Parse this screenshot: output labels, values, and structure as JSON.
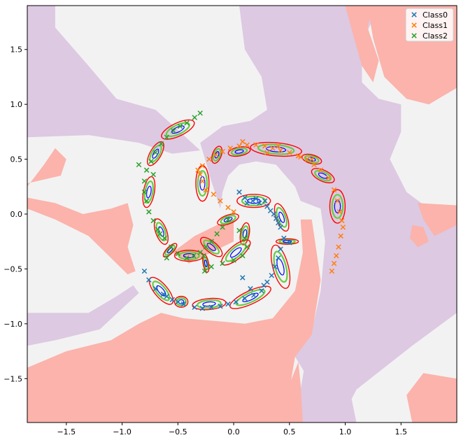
{
  "chart_data": {
    "type": "scatter",
    "title": "",
    "xlabel": "",
    "ylabel": "",
    "xlim": [
      -1.85,
      2.0
    ],
    "ylim": [
      -1.9,
      1.9
    ],
    "xticks": [
      "−1.5",
      "−1.0",
      "−0.5",
      "0.0",
      "0.5",
      "1.0",
      "1.5"
    ],
    "xtick_values": [
      -1.5,
      -1.0,
      -0.5,
      0.0,
      0.5,
      1.0,
      1.5
    ],
    "yticks": [
      "−1.5",
      "−1.0",
      "−0.5",
      "0.0",
      "0.5",
      "1.0",
      "1.5"
    ],
    "ytick_values": [
      -1.5,
      -1.0,
      -0.5,
      0.0,
      0.5,
      1.0,
      1.5
    ],
    "grid": false,
    "legend_position": "top-right",
    "colors": {
      "class0": "#1f77b4",
      "class1": "#ff7f0e",
      "class2": "#2ca02c",
      "region_class0": "#f2f2f2",
      "region_class1": "#ddc9e2",
      "region_class2": "#fbb3ab",
      "ellipse_outer": "#ff0000",
      "ellipse_inner": "#0000ff",
      "ellipse_mid": "#66cc44"
    },
    "series": [
      {
        "name": "Class0",
        "points": [
          [
            0.05,
            0.2
          ],
          [
            0.1,
            0.15
          ],
          [
            0.12,
            0.1
          ],
          [
            0.17,
            0.12
          ],
          [
            0.2,
            0.14
          ],
          [
            0.23,
            0.1
          ],
          [
            0.28,
            0.12
          ],
          [
            0.3,
            0.07
          ],
          [
            0.33,
            0.03
          ],
          [
            0.36,
            0.0
          ],
          [
            0.38,
            -0.04
          ],
          [
            0.4,
            -0.08
          ],
          [
            0.42,
            -0.12
          ],
          [
            0.45,
            -0.22
          ],
          [
            0.5,
            -0.26
          ],
          [
            0.42,
            -0.32
          ],
          [
            0.4,
            -0.4
          ],
          [
            0.37,
            -0.48
          ],
          [
            0.34,
            -0.56
          ],
          [
            0.3,
            -0.62
          ],
          [
            0.25,
            -0.7
          ],
          [
            0.18,
            -0.74
          ],
          [
            0.1,
            -0.77
          ],
          [
            0.02,
            -0.8
          ],
          [
            -0.05,
            -0.82
          ],
          [
            -0.12,
            -0.84
          ],
          [
            -0.2,
            -0.85
          ],
          [
            -0.28,
            -0.86
          ],
          [
            -0.35,
            -0.85
          ],
          [
            -0.45,
            -0.82
          ],
          [
            -0.55,
            -0.78
          ],
          [
            -0.63,
            -0.73
          ],
          [
            -0.7,
            -0.68
          ],
          [
            -0.76,
            -0.6
          ],
          [
            -0.8,
            -0.52
          ],
          [
            0.08,
            -0.58
          ],
          [
            0.15,
            -0.68
          ],
          [
            -0.6,
            -0.75
          ],
          [
            -0.5,
            -0.8
          ],
          [
            0.27,
            -0.65
          ]
        ]
      },
      {
        "name": "Class1",
        "points": [
          [
            0.0,
            0.02
          ],
          [
            -0.05,
            0.06
          ],
          [
            -0.12,
            0.12
          ],
          [
            -0.18,
            0.18
          ],
          [
            -0.25,
            0.22
          ],
          [
            -0.28,
            0.3
          ],
          [
            -0.3,
            0.36
          ],
          [
            -0.28,
            0.44
          ],
          [
            -0.22,
            0.5
          ],
          [
            -0.16,
            0.54
          ],
          [
            -0.1,
            0.57
          ],
          [
            -0.03,
            0.6
          ],
          [
            0.05,
            0.62
          ],
          [
            0.12,
            0.63
          ],
          [
            0.2,
            0.63
          ],
          [
            0.28,
            0.62
          ],
          [
            0.35,
            0.6
          ],
          [
            0.42,
            0.58
          ],
          [
            0.5,
            0.56
          ],
          [
            0.58,
            0.53
          ],
          [
            0.66,
            0.5
          ],
          [
            0.72,
            0.45
          ],
          [
            0.78,
            0.4
          ],
          [
            0.85,
            0.33
          ],
          [
            0.9,
            0.22
          ],
          [
            0.93,
            0.12
          ],
          [
            0.95,
            0.02
          ],
          [
            0.97,
            -0.06
          ],
          [
            0.98,
            -0.12
          ],
          [
            0.96,
            -0.2
          ],
          [
            0.94,
            -0.3
          ],
          [
            0.92,
            -0.38
          ],
          [
            0.9,
            -0.45
          ],
          [
            0.88,
            -0.52
          ],
          [
            0.7,
            0.5
          ],
          [
            0.6,
            0.52
          ],
          [
            0.08,
            0.66
          ],
          [
            -0.32,
            0.4
          ],
          [
            0.4,
            0.62
          ],
          [
            0.3,
            0.56
          ]
        ]
      },
      {
        "name": "Class2",
        "points": [
          [
            -0.05,
            -0.05
          ],
          [
            -0.1,
            -0.12
          ],
          [
            -0.15,
            -0.18
          ],
          [
            -0.2,
            -0.25
          ],
          [
            -0.25,
            -0.3
          ],
          [
            -0.3,
            -0.35
          ],
          [
            -0.36,
            -0.38
          ],
          [
            -0.42,
            -0.4
          ],
          [
            -0.5,
            -0.36
          ],
          [
            -0.56,
            -0.3
          ],
          [
            -0.62,
            -0.22
          ],
          [
            -0.68,
            -0.14
          ],
          [
            -0.72,
            -0.06
          ],
          [
            -0.76,
            0.02
          ],
          [
            -0.78,
            0.12
          ],
          [
            -0.8,
            0.2
          ],
          [
            -0.8,
            0.3
          ],
          [
            -0.78,
            0.4
          ],
          [
            -0.74,
            0.48
          ],
          [
            -0.7,
            0.56
          ],
          [
            -0.65,
            0.64
          ],
          [
            -0.6,
            0.7
          ],
          [
            -0.54,
            0.76
          ],
          [
            -0.48,
            0.8
          ],
          [
            -0.42,
            0.83
          ],
          [
            -0.35,
            0.88
          ],
          [
            -0.3,
            0.92
          ],
          [
            0.05,
            -0.15
          ],
          [
            0.1,
            -0.22
          ],
          [
            0.12,
            -0.3
          ],
          [
            0.08,
            -0.38
          ],
          [
            0.0,
            -0.42
          ],
          [
            -0.1,
            -0.45
          ],
          [
            -0.2,
            -0.48
          ],
          [
            -0.26,
            -0.52
          ],
          [
            -0.85,
            0.45
          ],
          [
            -0.72,
            0.36
          ],
          [
            -0.66,
            -0.18
          ],
          [
            -0.6,
            -0.4
          ],
          [
            -0.27,
            -0.38
          ]
        ]
      }
    ],
    "ellipses": [
      {
        "cx": -0.5,
        "cy": 0.77,
        "rx": 0.16,
        "ry": 0.06,
        "angle": 25
      },
      {
        "cx": -0.7,
        "cy": 0.55,
        "rx": 0.12,
        "ry": 0.05,
        "angle": 60
      },
      {
        "cx": -0.76,
        "cy": 0.2,
        "rx": 0.14,
        "ry": 0.05,
        "angle": 80
      },
      {
        "cx": -0.65,
        "cy": -0.16,
        "rx": 0.12,
        "ry": 0.05,
        "angle": -70
      },
      {
        "cx": -0.57,
        "cy": -0.33,
        "rx": 0.08,
        "ry": 0.03,
        "angle": 45
      },
      {
        "cx": -0.4,
        "cy": -0.38,
        "rx": 0.13,
        "ry": 0.05,
        "angle": 0
      },
      {
        "cx": -0.25,
        "cy": -0.45,
        "rx": 0.08,
        "ry": 0.025,
        "angle": -80
      },
      {
        "cx": -0.2,
        "cy": -0.3,
        "rx": 0.12,
        "ry": 0.05,
        "angle": -40
      },
      {
        "cx": -0.05,
        "cy": -0.05,
        "rx": 0.1,
        "ry": 0.04,
        "angle": 20
      },
      {
        "cx": 0.1,
        "cy": -0.18,
        "rx": 0.1,
        "ry": 0.04,
        "angle": 80
      },
      {
        "cx": 0.02,
        "cy": -0.35,
        "rx": 0.16,
        "ry": 0.06,
        "angle": 40
      },
      {
        "cx": -0.28,
        "cy": 0.28,
        "rx": 0.16,
        "ry": 0.06,
        "angle": 90
      },
      {
        "cx": -0.15,
        "cy": 0.54,
        "rx": 0.08,
        "ry": 0.04,
        "angle": 70
      },
      {
        "cx": 0.05,
        "cy": 0.57,
        "rx": 0.1,
        "ry": 0.04,
        "angle": 10
      },
      {
        "cx": 0.38,
        "cy": 0.59,
        "rx": 0.23,
        "ry": 0.06,
        "angle": -5
      },
      {
        "cx": 0.7,
        "cy": 0.5,
        "rx": 0.09,
        "ry": 0.04,
        "angle": -15
      },
      {
        "cx": 0.8,
        "cy": 0.35,
        "rx": 0.11,
        "ry": 0.05,
        "angle": -25
      },
      {
        "cx": 0.93,
        "cy": 0.07,
        "rx": 0.15,
        "ry": 0.07,
        "angle": 90
      },
      {
        "cx": 0.18,
        "cy": 0.12,
        "rx": 0.15,
        "ry": 0.06,
        "angle": 0
      },
      {
        "cx": 0.43,
        "cy": -0.03,
        "rx": 0.13,
        "ry": 0.05,
        "angle": -70
      },
      {
        "cx": 0.42,
        "cy": -0.48,
        "rx": 0.2,
        "ry": 0.07,
        "angle": -75
      },
      {
        "cx": 0.15,
        "cy": -0.76,
        "rx": 0.2,
        "ry": 0.06,
        "angle": 25
      },
      {
        "cx": -0.22,
        "cy": -0.82,
        "rx": 0.15,
        "ry": 0.05,
        "angle": 5
      },
      {
        "cx": -0.47,
        "cy": -0.8,
        "rx": 0.06,
        "ry": 0.05,
        "angle": 0
      },
      {
        "cx": -0.65,
        "cy": -0.7,
        "rx": 0.15,
        "ry": 0.06,
        "angle": -50
      },
      {
        "cx": 0.48,
        "cy": -0.25,
        "rx": 0.1,
        "ry": 0.025,
        "angle": 0
      }
    ],
    "region_class2_polygons": [
      [
        [
          -1.85,
          1.9
        ],
        [
          -1.0,
          1.9
        ],
        [
          -0.8,
          1.55
        ],
        [
          -0.55,
          1.35
        ],
        [
          -0.3,
          1.2
        ],
        [
          0.0,
          1.15
        ],
        [
          0.2,
          1.25
        ],
        [
          0.35,
          1.45
        ],
        [
          0.45,
          1.7
        ],
        [
          0.55,
          1.9
        ],
        [
          -1.85,
          1.9
        ]
      ]
    ],
    "region_class1_polygons": [
      [
        [
          -1.85,
          1.9
        ],
        [
          -1.6,
          1.9
        ],
        [
          -1.6,
          1.7
        ],
        [
          -1.3,
          1.35
        ],
        [
          -1.05,
          1.05
        ],
        [
          -0.7,
          0.95
        ],
        [
          -0.45,
          0.72
        ],
        [
          -0.3,
          0.58
        ],
        [
          -0.55,
          0.55
        ],
        [
          -0.85,
          0.65
        ],
        [
          -1.3,
          0.72
        ],
        [
          -1.85,
          0.7
        ]
      ],
      [
        [
          0.05,
          1.9
        ],
        [
          1.3,
          1.9
        ],
        [
          1.15,
          1.55
        ],
        [
          1.15,
          1.2
        ],
        [
          1.3,
          1.05
        ],
        [
          1.5,
          1.0
        ],
        [
          1.5,
          0.75
        ],
        [
          1.4,
          0.5
        ],
        [
          1.55,
          0.2
        ],
        [
          1.75,
          0.05
        ],
        [
          2.0,
          0.05
        ],
        [
          2.0,
          -0.9
        ],
        [
          1.6,
          -1.2
        ],
        [
          1.1,
          -1.6
        ],
        [
          0.95,
          -1.9
        ],
        [
          0.55,
          -1.9
        ],
        [
          0.65,
          -1.3
        ],
        [
          0.78,
          -0.7
        ],
        [
          0.82,
          -0.25
        ],
        [
          0.78,
          0.05
        ],
        [
          0.6,
          0.12
        ],
        [
          0.55,
          0.25
        ],
        [
          0.38,
          0.45
        ],
        [
          0.2,
          0.48
        ],
        [
          0.05,
          0.45
        ],
        [
          -0.05,
          0.35
        ],
        [
          -0.1,
          0.2
        ],
        [
          -0.12,
          0.05
        ],
        [
          -0.2,
          0.3
        ],
        [
          -0.3,
          0.65
        ],
        [
          -0.1,
          0.8
        ],
        [
          0.15,
          0.85
        ],
        [
          0.3,
          0.95
        ],
        [
          0.25,
          1.25
        ],
        [
          0.1,
          1.5
        ]
      ],
      [
        [
          -1.85,
          -0.9
        ],
        [
          -1.3,
          -0.9
        ],
        [
          -1.05,
          -0.75
        ],
        [
          -0.9,
          -0.65
        ],
        [
          -0.85,
          -0.72
        ],
        [
          -1.2,
          -1.05
        ],
        [
          -1.6,
          -1.15
        ],
        [
          -1.85,
          -1.2
        ]
      ],
      [
        [
          0.4,
          -1.2
        ],
        [
          0.7,
          -1.05
        ],
        [
          1.0,
          -1.4
        ],
        [
          1.1,
          -1.9
        ],
        [
          0.85,
          -1.9
        ],
        [
          0.7,
          -1.55
        ],
        [
          0.55,
          -1.3
        ]
      ]
    ],
    "region_class2_lower": [
      [
        [
          -1.85,
          0.25
        ],
        [
          -1.7,
          0.45
        ],
        [
          -1.6,
          0.6
        ],
        [
          -1.5,
          0.5
        ],
        [
          -1.55,
          0.35
        ],
        [
          -1.85,
          0.28
        ]
      ],
      [
        [
          -1.85,
          -1.9
        ],
        [
          -1.85,
          -1.4
        ],
        [
          -1.5,
          -1.25
        ],
        [
          -1.1,
          -1.15
        ],
        [
          -0.85,
          -1.0
        ],
        [
          -0.65,
          -0.9
        ],
        [
          -0.45,
          -0.95
        ],
        [
          -0.1,
          -0.98
        ],
        [
          0.1,
          -1.0
        ],
        [
          0.35,
          -0.95
        ],
        [
          0.55,
          -0.7
        ],
        [
          0.62,
          -0.35
        ],
        [
          0.6,
          -0.05
        ],
        [
          0.7,
          -0.05
        ],
        [
          0.78,
          -0.6
        ],
        [
          0.7,
          -1.1
        ],
        [
          0.55,
          -1.3
        ],
        [
          0.45,
          -1.9
        ]
      ],
      [
        [
          -1.85,
          0.05
        ],
        [
          -1.6,
          -0.05
        ],
        [
          -1.3,
          -0.2
        ],
        [
          -1.1,
          -0.4
        ],
        [
          -0.95,
          -0.55
        ],
        [
          -0.88,
          -0.52
        ],
        [
          -0.95,
          -0.3
        ],
        [
          -0.9,
          -0.1
        ],
        [
          -0.95,
          0.1
        ],
        [
          -1.1,
          0.05
        ],
        [
          -1.35,
          0.0
        ],
        [
          -1.6,
          0.1
        ],
        [
          -1.85,
          0.15
        ]
      ],
      [
        [
          -0.55,
          -0.35
        ],
        [
          -0.35,
          -0.2
        ],
        [
          -0.15,
          -0.1
        ],
        [
          0.0,
          -0.05
        ],
        [
          0.0,
          -0.25
        ],
        [
          -0.2,
          -0.35
        ],
        [
          -0.4,
          -0.45
        ]
      ],
      [
        [
          1.2,
          1.9
        ],
        [
          1.25,
          1.6
        ],
        [
          1.35,
          1.25
        ],
        [
          1.55,
          1.05
        ],
        [
          1.75,
          1.0
        ],
        [
          2.0,
          1.15
        ],
        [
          2.0,
          1.9
        ]
      ],
      [
        [
          1.0,
          1.9
        ],
        [
          1.08,
          1.6
        ],
        [
          1.15,
          1.35
        ],
        [
          1.25,
          1.2
        ],
        [
          1.3,
          1.4
        ],
        [
          1.2,
          1.7
        ],
        [
          1.25,
          1.9
        ]
      ],
      [
        [
          0.4,
          -1.9
        ],
        [
          0.48,
          -1.6
        ],
        [
          0.58,
          -1.35
        ],
        [
          0.6,
          -1.55
        ],
        [
          0.62,
          -1.9
        ]
      ],
      [
        [
          1.6,
          -1.9
        ],
        [
          1.55,
          -1.65
        ],
        [
          1.7,
          -1.45
        ],
        [
          2.0,
          -1.5
        ],
        [
          2.0,
          -1.9
        ]
      ],
      [
        [
          1.65,
          0.1
        ],
        [
          1.7,
          -0.05
        ],
        [
          1.8,
          -0.2
        ],
        [
          1.9,
          -0.15
        ],
        [
          2.0,
          -0.1
        ],
        [
          2.0,
          0.08
        ]
      ],
      [
        [
          1.6,
          -0.1
        ],
        [
          1.7,
          -0.12
        ],
        [
          1.75,
          -0.25
        ],
        [
          1.65,
          -0.3
        ],
        [
          1.58,
          -0.22
        ]
      ]
    ]
  }
}
